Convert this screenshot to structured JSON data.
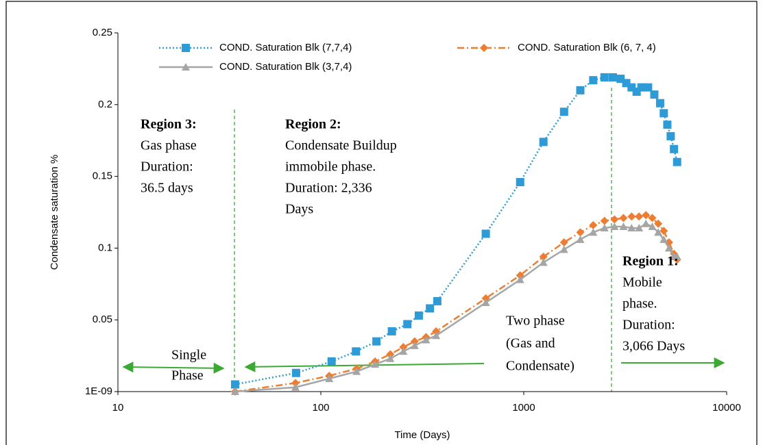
{
  "chart_data": {
    "type": "line",
    "xlabel": "Time (Days)",
    "ylabel": "Condensate saturation %",
    "xscale": "log",
    "xlim": [
      10,
      10000
    ],
    "xticks": [
      10,
      100,
      1000,
      10000
    ],
    "ylim": [
      0,
      0.25
    ],
    "yticks": [
      {
        "value": 1e-09,
        "label": "1E-09"
      },
      0.05,
      0.1,
      0.15,
      0.2,
      0.25
    ],
    "grid": false,
    "series": [
      {
        "name": "COND. Saturation Blk (7,7,4)",
        "color": "#2e9bd6",
        "marker": "square",
        "dash": "dotted",
        "x": [
          37.8,
          75.5,
          113,
          149,
          188,
          224,
          267,
          304,
          345,
          375,
          650,
          960,
          1250,
          1580,
          1900,
          2200,
          2500,
          2750,
          3000,
          3200,
          3400,
          3600,
          3800,
          4100,
          4400,
          4700,
          4900,
          5100,
          5300,
          5500,
          5700
        ],
        "values": [
          0.005,
          0.013,
          0.021,
          0.028,
          0.035,
          0.042,
          0.047,
          0.053,
          0.058,
          0.063,
          0.11,
          0.146,
          0.174,
          0.195,
          0.21,
          0.217,
          0.219,
          0.219,
          0.218,
          0.215,
          0.212,
          0.209,
          0.212,
          0.212,
          0.207,
          0.201,
          0.194,
          0.186,
          0.178,
          0.169,
          0.16
        ]
      },
      {
        "name": "COND. Saturation Blk (6, 7, 4)",
        "color": "#ed7d31",
        "marker": "diamond",
        "dash": "dashdot",
        "x": [
          37.8,
          75,
          110,
          150,
          185,
          220,
          255,
          290,
          330,
          370,
          650,
          960,
          1250,
          1580,
          1900,
          2200,
          2500,
          2800,
          3100,
          3400,
          3700,
          4000,
          4300,
          4600,
          4900,
          5200,
          5500,
          5700
        ],
        "values": [
          0,
          0.006,
          0.011,
          0.016,
          0.021,
          0.026,
          0.031,
          0.035,
          0.038,
          0.042,
          0.065,
          0.081,
          0.094,
          0.104,
          0.111,
          0.116,
          0.119,
          0.12,
          0.121,
          0.122,
          0.122,
          0.123,
          0.121,
          0.117,
          0.112,
          0.104,
          0.096,
          0.092
        ]
      },
      {
        "name": "COND. Saturation Blk (3,7,4)",
        "color": "#a5a5a5",
        "marker": "triangle",
        "dash": "solid",
        "x": [
          37.8,
          75,
          110,
          150,
          185,
          220,
          255,
          290,
          330,
          370,
          650,
          960,
          1250,
          1580,
          1900,
          2200,
          2500,
          2800,
          3100,
          3400,
          3700,
          4000,
          4300,
          4600,
          4900,
          5200,
          5500,
          5700
        ],
        "values": [
          0,
          0.003,
          0.009,
          0.014,
          0.019,
          0.023,
          0.028,
          0.032,
          0.036,
          0.039,
          0.062,
          0.078,
          0.09,
          0.099,
          0.106,
          0.111,
          0.114,
          0.115,
          0.115,
          0.114,
          0.114,
          0.117,
          0.115,
          0.111,
          0.106,
          0.1,
          0.094,
          0.094
        ]
      }
    ],
    "annotations": [
      {
        "heading": "Region 3:",
        "lines": [
          "Gas phase",
          "Duration:",
          "36.5 days"
        ]
      },
      {
        "heading": "Region 2:",
        "lines": [
          "Condensate Buildup",
          "immobile phase.",
          "Duration: 2,336",
          "Days"
        ]
      },
      {
        "heading": "Region 1:",
        "lines": [
          "Mobile",
          "phase.",
          "Duration:",
          "3,066 Days"
        ]
      },
      {
        "lines": [
          "Single",
          "Phase"
        ]
      },
      {
        "lines": [
          "Two phase",
          "(Gas and",
          "Condensate)"
        ]
      }
    ]
  }
}
